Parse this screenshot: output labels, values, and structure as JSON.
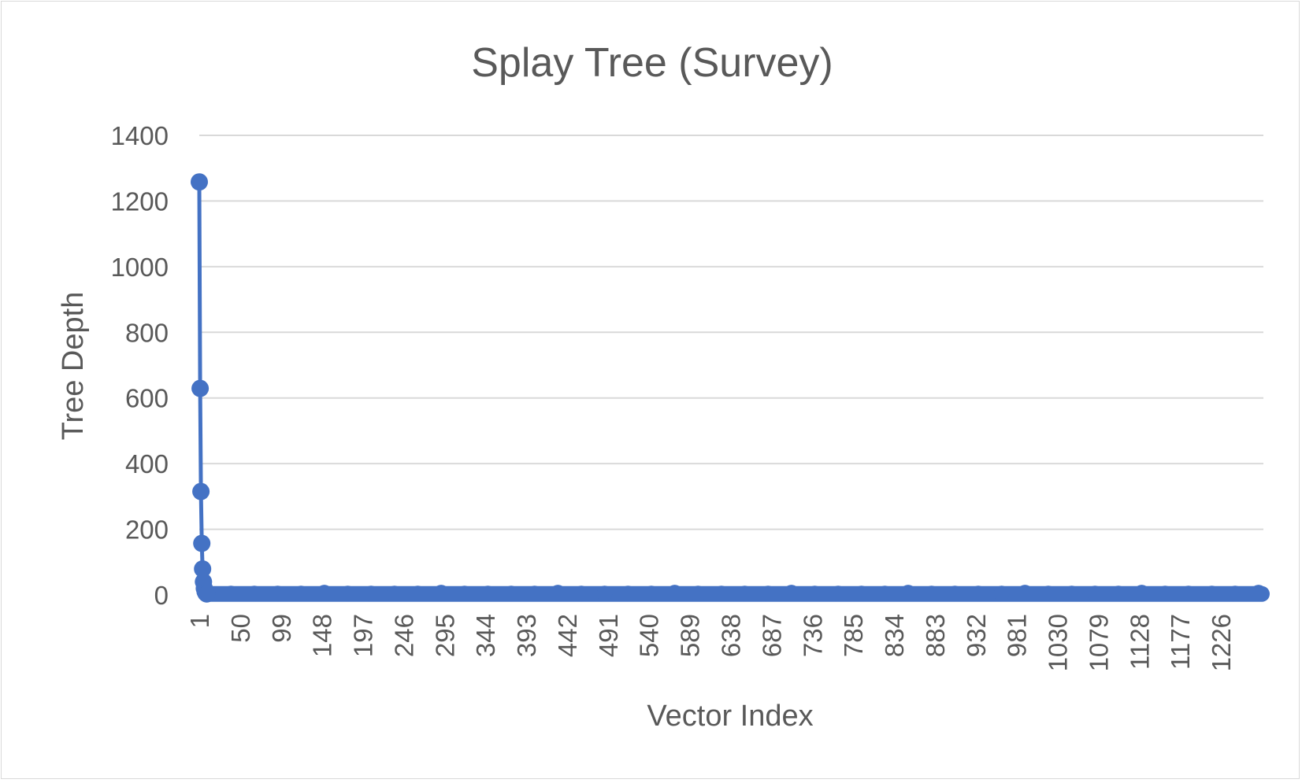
{
  "chart_data": {
    "type": "line",
    "title": "Splay Tree (Survey)",
    "xlabel": "Vector Index",
    "ylabel": "Tree Depth",
    "x_range": [
      1,
      1275
    ],
    "ylim": [
      0,
      1400
    ],
    "y_ticks": [
      0,
      200,
      400,
      600,
      800,
      1000,
      1200,
      1400
    ],
    "x_tick_labels": [
      "1",
      "50",
      "99",
      "148",
      "197",
      "246",
      "295",
      "344",
      "393",
      "442",
      "491",
      "540",
      "589",
      "638",
      "687",
      "736",
      "785",
      "834",
      "883",
      "932",
      "981",
      "1030",
      "1079",
      "1128",
      "1177",
      "1226"
    ],
    "grid": true,
    "legend": "none",
    "markers": true,
    "series": [
      {
        "color": "#4472C4",
        "leading_points": [
          [
            1,
            1258
          ],
          [
            2,
            629
          ],
          [
            3,
            315
          ],
          [
            4,
            157
          ],
          [
            5,
            79
          ],
          [
            6,
            40
          ],
          [
            7,
            20
          ],
          [
            8,
            10
          ],
          [
            9,
            5
          ],
          [
            10,
            3
          ]
        ],
        "remaining_points": {
          "x_from": 11,
          "x_to": 1275,
          "approx_value": 3,
          "value_range": [
            1,
            15
          ]
        }
      }
    ]
  }
}
